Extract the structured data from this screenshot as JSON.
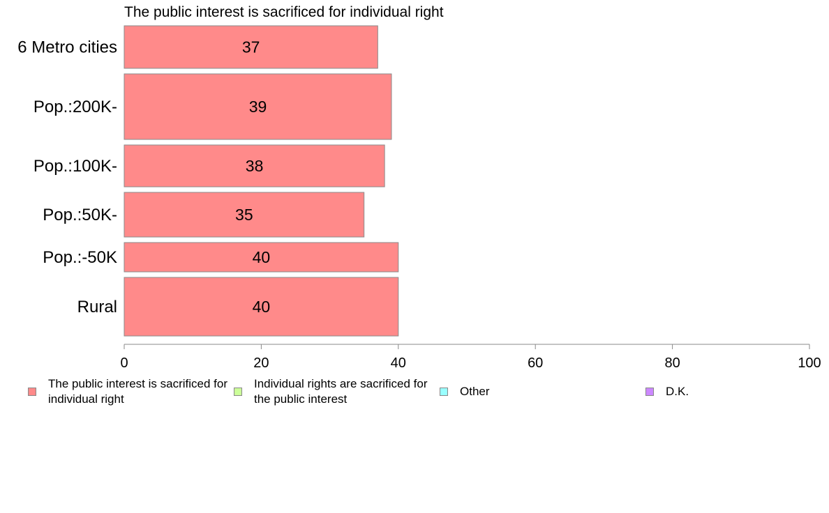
{
  "chart_data": {
    "type": "bar",
    "orientation": "horizontal",
    "title": "The public interest is sacrificed for individual right",
    "categories": [
      "6 Metro cities",
      "Pop.:200K-",
      "Pop.:100K-",
      "Pop.:50K-",
      "Pop.:-50K",
      "Rural"
    ],
    "series": [
      {
        "name": "The public interest is sacrificed for individual right",
        "color": "#ff8a8a",
        "values": [
          37,
          39,
          38,
          35,
          40,
          40
        ]
      }
    ],
    "xlim": [
      0,
      100
    ],
    "xticks": [
      0,
      20,
      40,
      60,
      80,
      100
    ],
    "legend": {
      "placement": "bottom",
      "items": [
        {
          "label": "The public interest is sacrificed for individual right",
          "color": "#ff8a8a"
        },
        {
          "label": "Individual rights are sacrificed for the public interest",
          "color": "#ccff99"
        },
        {
          "label": "Other",
          "color": "#99ffff"
        },
        {
          "label": "D.K.",
          "color": "#cc88ff"
        }
      ]
    },
    "grid": false
  }
}
